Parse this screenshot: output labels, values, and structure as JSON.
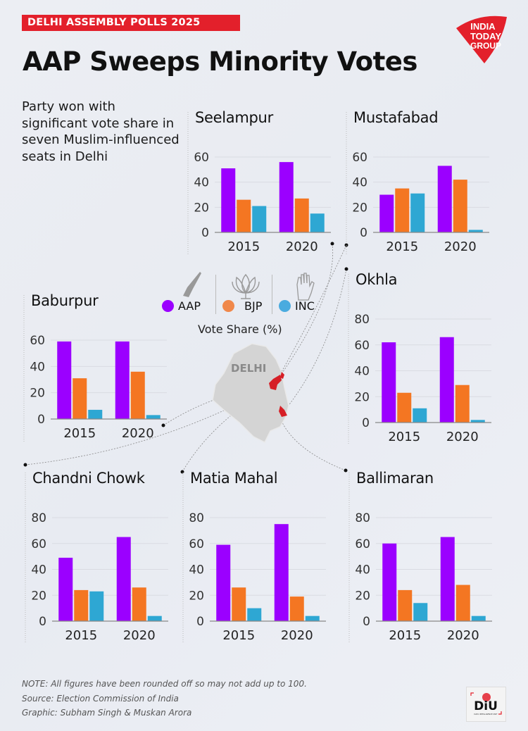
{
  "header": {
    "kicker": "DELHI ASSEMBLY POLLS 2025",
    "title": "AAP Sweeps Minority Votes",
    "logo_lines": [
      "INDIA",
      "TODAY",
      "GROUP"
    ]
  },
  "subtitle": "Party won with significant vote share in seven Muslim-influenced seats in Delhi",
  "colors": {
    "AAP": "#9b00ff",
    "BJP": "#f47622",
    "INC": "#2ea7d3",
    "brand_red": "#e3202b"
  },
  "legend": {
    "items": [
      {
        "label": "AAP",
        "icon": "broom-icon",
        "color": "#9b00ff"
      },
      {
        "label": "BJP",
        "icon": "lotus-icon",
        "color": "#f0884a"
      },
      {
        "label": "INC",
        "icon": "hand-icon",
        "color": "#4aabdf"
      }
    ],
    "caption": "Vote Share (%)"
  },
  "map": {
    "label": "DELHI"
  },
  "chart_data": [
    {
      "type": "bar",
      "title": "Seelampur",
      "categories": [
        "2015",
        "2020"
      ],
      "ylim": [
        0,
        60
      ],
      "yticks": [
        0,
        20,
        40,
        60
      ],
      "series": [
        {
          "name": "AAP",
          "values": [
            51,
            56
          ]
        },
        {
          "name": "BJP",
          "values": [
            26,
            27
          ]
        },
        {
          "name": "INC",
          "values": [
            21,
            15
          ]
        }
      ],
      "ylabel": "Vote Share (%)",
      "grid": true
    },
    {
      "type": "bar",
      "title": "Mustafabad",
      "categories": [
        "2015",
        "2020"
      ],
      "ylim": [
        0,
        60
      ],
      "yticks": [
        0,
        20,
        40,
        60
      ],
      "series": [
        {
          "name": "AAP",
          "values": [
            30,
            53
          ]
        },
        {
          "name": "BJP",
          "values": [
            35,
            42
          ]
        },
        {
          "name": "INC",
          "values": [
            31,
            2
          ]
        }
      ],
      "ylabel": "Vote Share (%)",
      "grid": true
    },
    {
      "type": "bar",
      "title": "Baburpur",
      "categories": [
        "2015",
        "2020"
      ],
      "ylim": [
        0,
        60
      ],
      "yticks": [
        0,
        20,
        40,
        60
      ],
      "series": [
        {
          "name": "AAP",
          "values": [
            59,
            59
          ]
        },
        {
          "name": "BJP",
          "values": [
            31,
            36
          ]
        },
        {
          "name": "INC",
          "values": [
            7,
            3
          ]
        }
      ],
      "ylabel": "Vote Share (%)",
      "grid": true
    },
    {
      "type": "bar",
      "title": "Okhla",
      "categories": [
        "2015",
        "2020"
      ],
      "ylim": [
        0,
        80
      ],
      "yticks": [
        0,
        20,
        40,
        60,
        80
      ],
      "series": [
        {
          "name": "AAP",
          "values": [
            62,
            66
          ]
        },
        {
          "name": "BJP",
          "values": [
            23,
            29
          ]
        },
        {
          "name": "INC",
          "values": [
            11,
            2
          ]
        }
      ],
      "ylabel": "Vote Share (%)",
      "grid": true
    },
    {
      "type": "bar",
      "title": "Chandni Chowk",
      "categories": [
        "2015",
        "2020"
      ],
      "ylim": [
        0,
        80
      ],
      "yticks": [
        0,
        20,
        40,
        60,
        80
      ],
      "series": [
        {
          "name": "AAP",
          "values": [
            49,
            65
          ]
        },
        {
          "name": "BJP",
          "values": [
            24,
            26
          ]
        },
        {
          "name": "INC",
          "values": [
            23,
            4
          ]
        }
      ],
      "ylabel": "Vote Share (%)",
      "grid": true
    },
    {
      "type": "bar",
      "title": "Matia Mahal",
      "categories": [
        "2015",
        "2020"
      ],
      "ylim": [
        0,
        80
      ],
      "yticks": [
        0,
        20,
        40,
        60,
        80
      ],
      "series": [
        {
          "name": "AAP",
          "values": [
            59,
            75
          ]
        },
        {
          "name": "BJP",
          "values": [
            26,
            19
          ]
        },
        {
          "name": "INC",
          "values": [
            10,
            4
          ]
        }
      ],
      "ylabel": "Vote Share (%)",
      "grid": true
    },
    {
      "type": "bar",
      "title": "Ballimaran",
      "categories": [
        "2015",
        "2020"
      ],
      "ylim": [
        0,
        80
      ],
      "yticks": [
        0,
        20,
        40,
        60,
        80
      ],
      "series": [
        {
          "name": "AAP",
          "values": [
            60,
            65
          ]
        },
        {
          "name": "BJP",
          "values": [
            24,
            28
          ]
        },
        {
          "name": "INC",
          "values": [
            14,
            4
          ]
        }
      ],
      "ylabel": "Vote Share (%)",
      "grid": true
    }
  ],
  "footer": {
    "note": "NOTE: All figures have been rounded off so may not add up to 100.",
    "source": "Source: Election Commission of India",
    "credit": "Graphic: Subham Singh & Muskan Arora",
    "diu_logo": "DiU",
    "diu_sub": "DATA INTELLIGENCE UNIT"
  }
}
